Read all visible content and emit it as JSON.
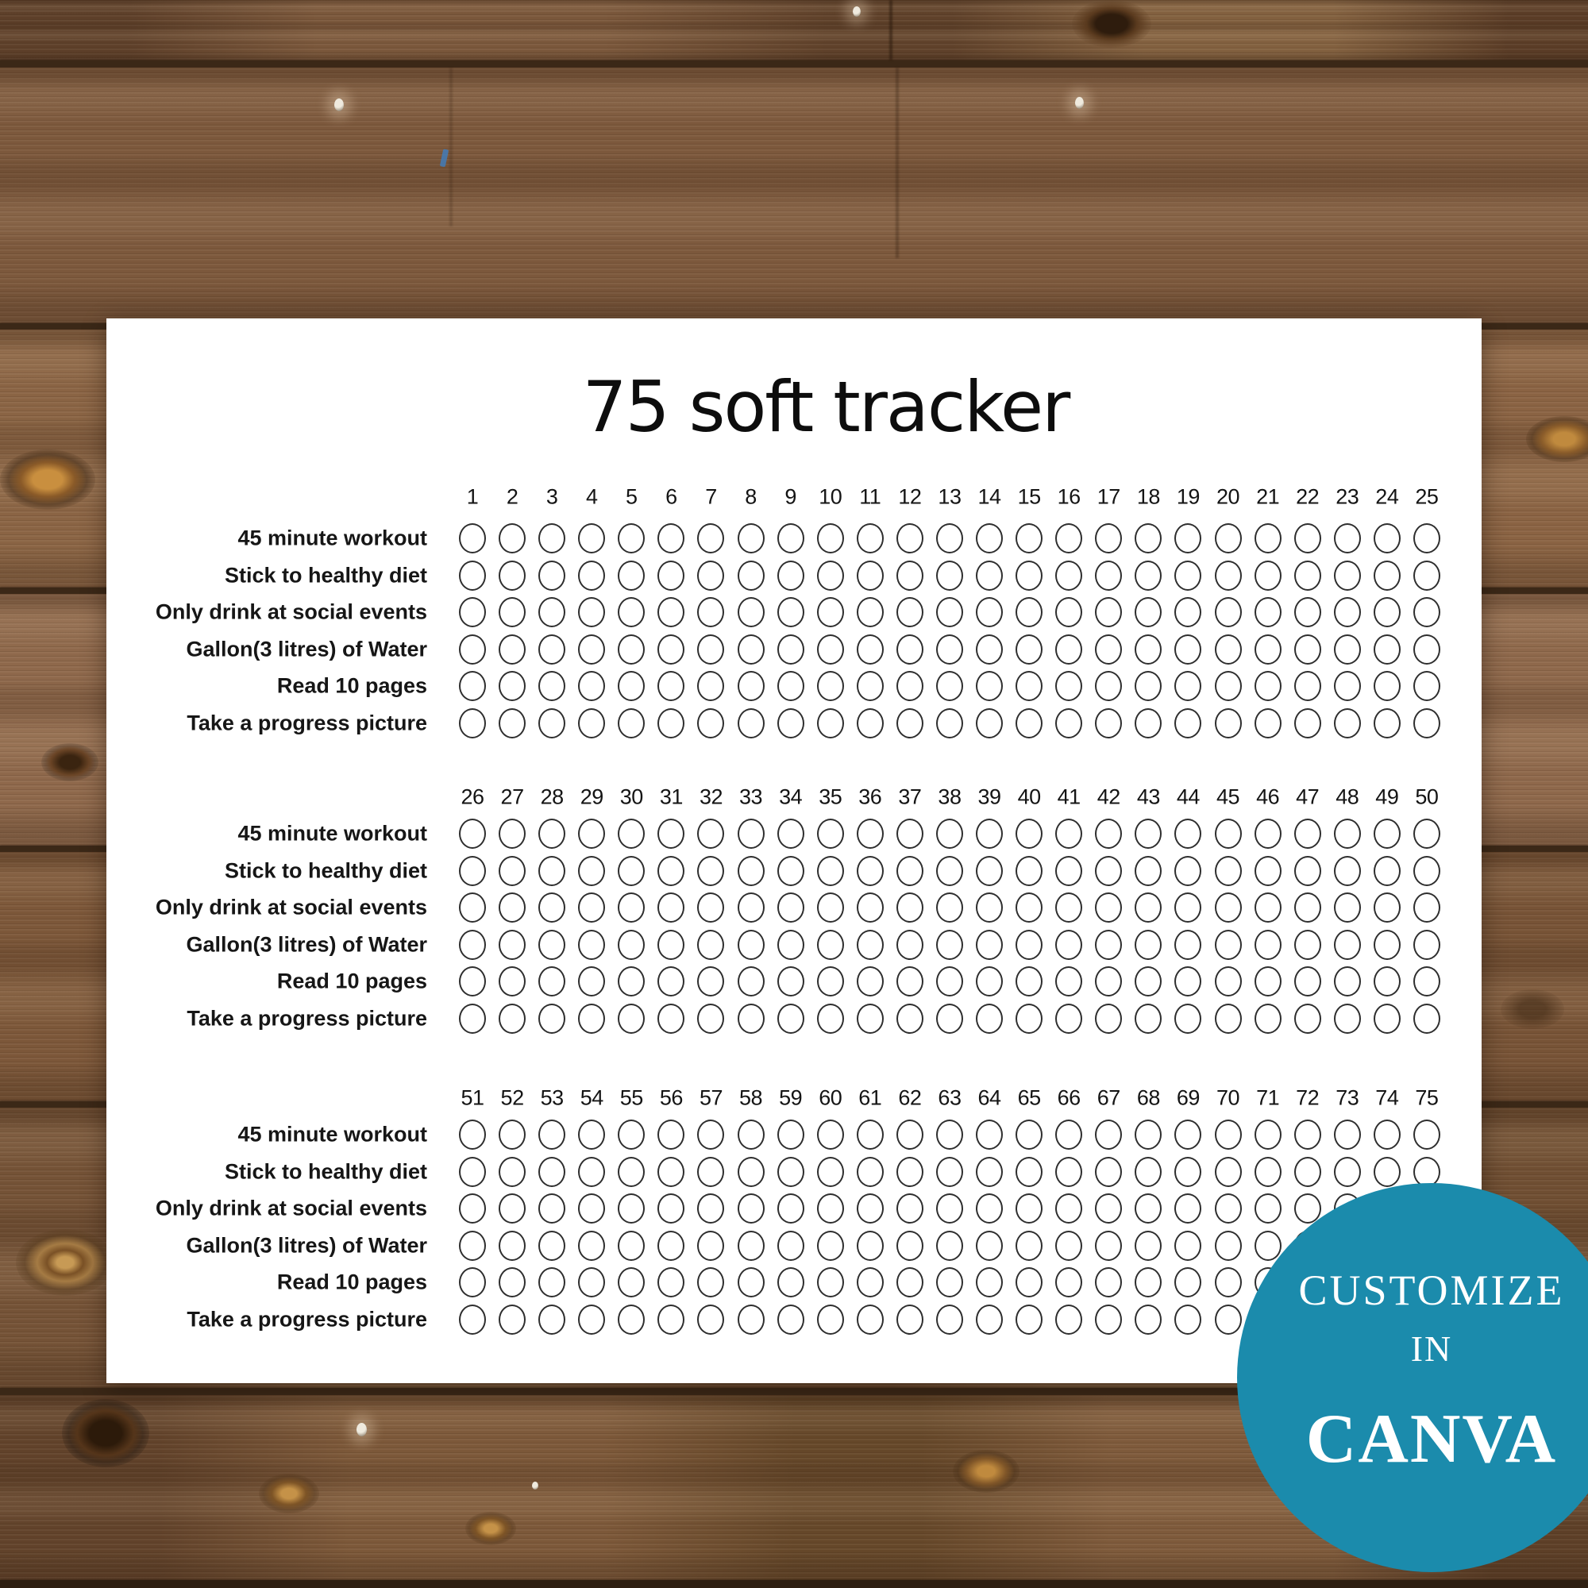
{
  "page": {
    "title": "75 soft tracker",
    "background": "#ffffff"
  },
  "tracker": {
    "row_labels": [
      "45 minute workout",
      "Stick to healthy diet",
      "Only drink at social events",
      "Gallon(3 litres) of Water",
      "Read 10 pages",
      "Take a progress picture"
    ],
    "blocks": [
      {
        "numbers": [
          "1",
          "2",
          "3",
          "4",
          "5",
          "6",
          "7",
          "8",
          "9",
          "10",
          "11",
          "12",
          "13",
          "14",
          "15",
          "16",
          "17",
          "18",
          "19",
          "20",
          "21",
          "22",
          "23",
          "24",
          "25"
        ]
      },
      {
        "numbers": [
          "26",
          "27",
          "28",
          "29",
          "30",
          "31",
          "32",
          "33",
          "34",
          "35",
          "36",
          "37",
          "38",
          "39",
          "40",
          "41",
          "42",
          "43",
          "44",
          "45",
          "46",
          "47",
          "48",
          "49",
          "50"
        ]
      },
      {
        "numbers": [
          "51",
          "52",
          "53",
          "54",
          "55",
          "56",
          "57",
          "58",
          "59",
          "60",
          "61",
          "62",
          "63",
          "64",
          "65",
          "66",
          "67",
          "68",
          "69",
          "70",
          "71",
          "72",
          "73",
          "74",
          "75"
        ]
      }
    ],
    "circle_state": "empty",
    "circle_stroke_color": "#2e2e2e"
  },
  "badge": {
    "line1": "CUSTOMIZE",
    "line2": "IN",
    "line3": "CANVA",
    "background": "#1b8bac",
    "text_color": "#ffffff"
  },
  "colors": {
    "wood_base": "#7b573b",
    "wood_gap": "#3b2817",
    "text": "#141414"
  }
}
